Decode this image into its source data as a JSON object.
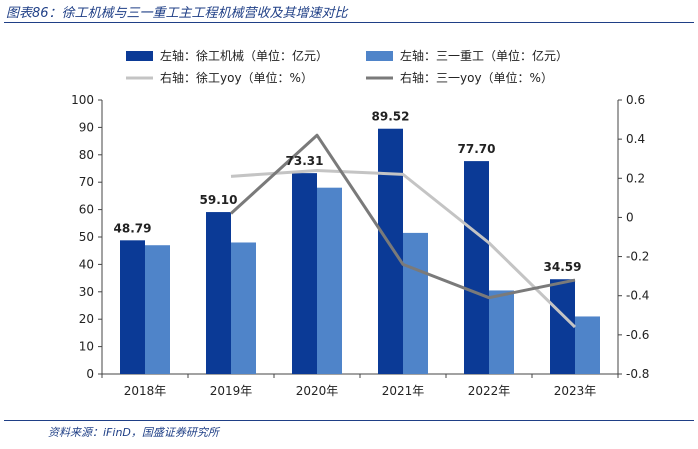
{
  "title": "图表86：徐工机械与三一重工主工程机械营收及其增速对比",
  "source": "资料来源：iFinD，国盛证券研究所",
  "chart_data": {
    "type": "bar",
    "categories": [
      "2018年",
      "2019年",
      "2020年",
      "2021年",
      "2022年",
      "2023年"
    ],
    "series": [
      {
        "name": "左轴：徐工机械（单位：亿元）",
        "kind": "bar",
        "axis": "left",
        "color": "#0b3a96",
        "values": [
          48.79,
          59.1,
          73.31,
          89.52,
          77.7,
          34.59
        ]
      },
      {
        "name": "左轴：三一重工（单位：亿元）",
        "kind": "bar",
        "axis": "left",
        "color": "#4f84c9",
        "values": [
          47,
          48,
          68,
          51.5,
          30.5,
          21
        ]
      },
      {
        "name": "右轴：徐工yoy（单位：%）",
        "kind": "line",
        "axis": "right",
        "color": "#c4c4c4",
        "values": [
          null,
          0.21,
          0.24,
          0.22,
          -0.13,
          -0.56
        ]
      },
      {
        "name": "右轴：三一yoy（单位：%）",
        "kind": "line",
        "axis": "right",
        "color": "#7a7a7a",
        "values": [
          null,
          0.02,
          0.42,
          -0.24,
          -0.41,
          -0.32
        ]
      }
    ],
    "data_labels": [
      "48.79",
      "59.10",
      "73.31",
      "89.52",
      "77.70",
      "34.59"
    ],
    "y_left": {
      "min": 0,
      "max": 100,
      "ticks": [
        "0",
        "10",
        "20",
        "30",
        "40",
        "50",
        "60",
        "70",
        "80",
        "90",
        "100"
      ]
    },
    "y_right": {
      "min": -0.8,
      "max": 0.6,
      "ticks": [
        "0.6",
        "0.4",
        "0.2",
        "0",
        "-0.2",
        "-0.4",
        "-0.6",
        "-0.8"
      ]
    },
    "legend_position": "top"
  }
}
